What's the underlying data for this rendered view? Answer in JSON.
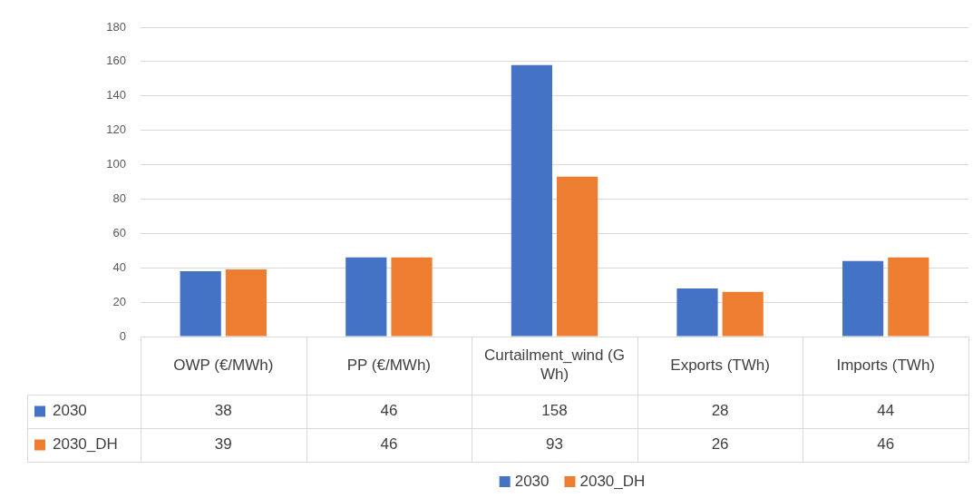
{
  "chart_data": {
    "type": "bar",
    "categories": [
      "OWP (€/MWh)",
      "PP (€/MWh)",
      "Curtailment_wind (GWh)",
      "Exports (TWh)",
      "Imports (TWh)"
    ],
    "series": [
      {
        "name": "2030",
        "color": "#4472c4",
        "values": [
          38,
          46,
          158,
          28,
          44
        ]
      },
      {
        "name": "2030_DH",
        "color": "#ed7d31",
        "values": [
          39,
          46,
          93,
          26,
          46
        ]
      }
    ],
    "ylim": [
      0,
      180
    ],
    "yticks": [
      0,
      20,
      40,
      60,
      80,
      100,
      120,
      140,
      160,
      180
    ],
    "grid": "y",
    "legend": "bottom",
    "data_labels": true
  }
}
